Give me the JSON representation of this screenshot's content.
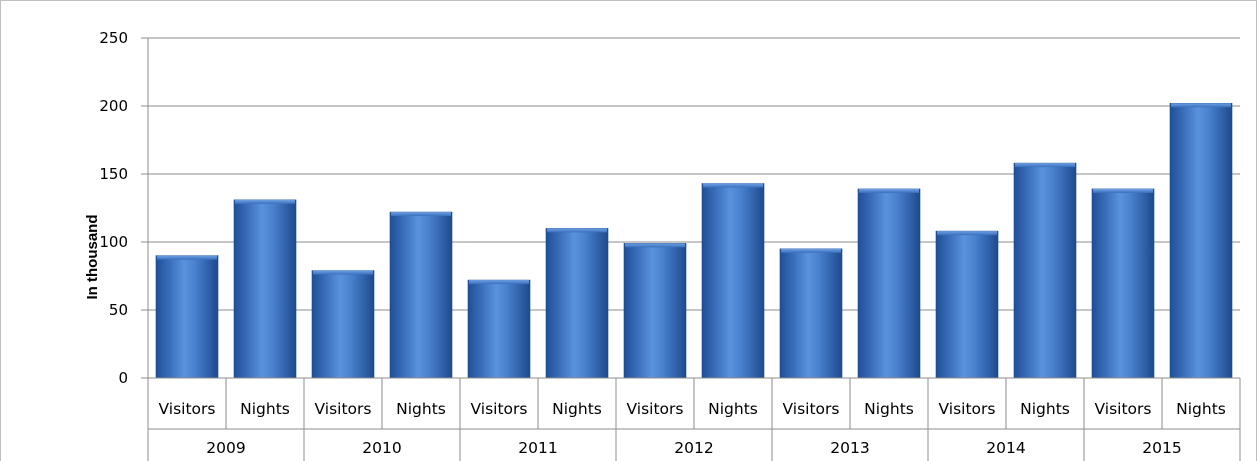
{
  "chart_data": {
    "type": "bar",
    "title": "",
    "xlabel": "",
    "ylabel": "In thousand",
    "ylim": [
      0,
      250
    ],
    "yticks": [
      0,
      50,
      100,
      150,
      200,
      250
    ],
    "grid": true,
    "legend": "none",
    "bar_color": "#3f78c6",
    "groups": [
      "2009",
      "2010",
      "2011",
      "2012",
      "2013",
      "2014",
      "2015"
    ],
    "categories": [
      "Visitors",
      "Nights",
      "Visitors",
      "Nights",
      "Visitors",
      "Nights",
      "Visitors",
      "Nights",
      "Visitors",
      "Nights",
      "Visitors",
      "Nights",
      "Visitors",
      "Nights"
    ],
    "values": [
      90,
      131,
      79,
      122,
      72,
      110,
      99,
      143,
      95,
      139,
      108,
      158,
      139,
      202
    ]
  }
}
